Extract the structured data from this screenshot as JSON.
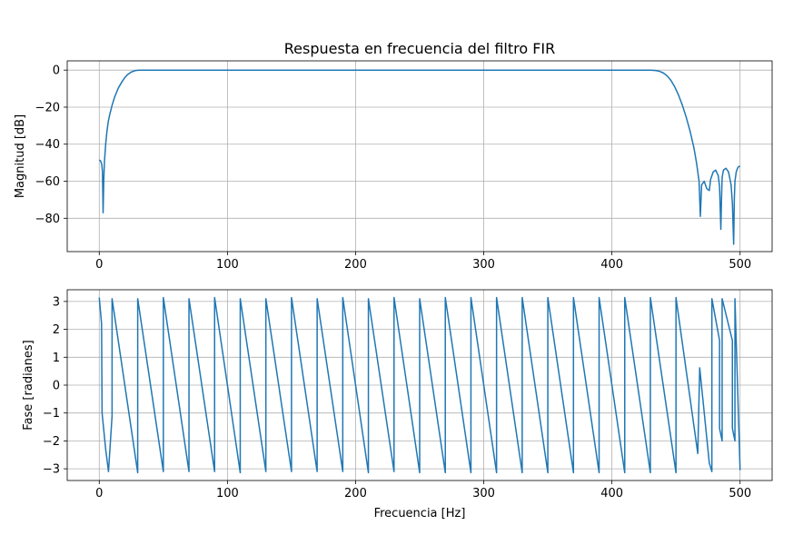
{
  "chart_data": [
    {
      "type": "line",
      "title": "Respuesta en frecuencia del filtro FIR",
      "xlabel": "",
      "ylabel": "Magnitud [dB]",
      "xlim": [
        -25,
        525
      ],
      "ylim": [
        -98,
        5
      ],
      "grid": true,
      "xticks": [
        0,
        100,
        200,
        300,
        400,
        500
      ],
      "xtick_labels": [
        "0",
        "100",
        "200",
        "300",
        "400",
        "500"
      ],
      "yticks": [
        0,
        -20,
        -40,
        -60,
        -80
      ],
      "ytick_labels": [
        "0",
        "−20",
        "−40",
        "−60",
        "−80"
      ],
      "color": "#1f77b4",
      "series": [
        {
          "x": [
            0,
            1,
            2,
            2.5,
            3,
            3.5,
            4,
            5,
            6,
            7,
            8,
            10,
            12,
            15,
            18,
            20,
            22,
            25,
            28,
            30,
            33,
            36,
            40,
            100,
            200,
            300,
            400,
            430,
            434,
            437,
            440,
            443,
            446,
            449,
            452,
            455,
            458,
            461,
            464,
            466,
            468,
            469,
            470,
            472,
            474,
            476,
            477,
            479,
            481,
            483,
            484,
            485,
            485.5,
            486,
            487,
            489,
            491,
            493,
            494,
            495,
            495.5,
            496,
            497,
            498,
            499,
            500
          ],
          "y": [
            -48.5,
            -49,
            -51,
            -55,
            -77,
            -60,
            -50,
            -40,
            -33,
            -28,
            -24.5,
            -19,
            -14.5,
            -9.5,
            -6,
            -4,
            -2.5,
            -1,
            -0.3,
            -0.1,
            0,
            0,
            0,
            0,
            0,
            0,
            0,
            0,
            -0.2,
            -0.6,
            -1.5,
            -3,
            -5.5,
            -9,
            -13.5,
            -19,
            -25.5,
            -33,
            -42,
            -50,
            -60,
            -79,
            -62,
            -60,
            -64,
            -65,
            -59,
            -55,
            -54,
            -57,
            -63,
            -86,
            -70,
            -58,
            -54,
            -53,
            -55,
            -62,
            -72,
            -94,
            -70,
            -60,
            -55,
            -53,
            -52,
            -52
          ]
        }
      ]
    },
    {
      "type": "line",
      "title": "",
      "xlabel": "Frecuencia [Hz]",
      "ylabel": "Fase [radianes]",
      "xlim": [
        -25,
        525
      ],
      "ylim": [
        -3.42,
        3.42
      ],
      "grid": true,
      "xticks": [
        0,
        100,
        200,
        300,
        400,
        500
      ],
      "xtick_labels": [
        "0",
        "100",
        "200",
        "300",
        "400",
        "500"
      ],
      "yticks": [
        3,
        2,
        1,
        0,
        -1,
        -2,
        -3
      ],
      "ytick_labels": [
        "3",
        "2",
        "1",
        "0",
        "−1",
        "−2",
        "−3"
      ],
      "color": "#1f77b4",
      "series": [
        {
          "x": [
            0,
            1.8,
            2.2,
            5,
            5,
            7.2,
            10,
            10,
            30,
            30,
            50,
            50,
            70,
            70,
            90,
            90,
            110,
            110,
            130,
            130,
            150,
            150,
            170,
            170,
            190,
            190,
            210,
            210,
            230,
            230,
            250,
            250,
            270,
            270,
            290,
            290,
            310,
            310,
            330,
            330,
            350,
            350,
            370,
            370,
            390,
            390,
            410,
            410,
            430,
            430,
            450,
            450,
            467,
            468.5,
            468.5,
            476,
            478,
            478,
            484,
            484,
            486,
            486,
            494,
            494,
            496,
            496,
            500
          ],
          "y": [
            3.14,
            2.2,
            -1,
            -2.3,
            -2.3,
            -3.1,
            -1.1,
            3.1,
            -3.14,
            3.1,
            -3.1,
            3.14,
            -3.1,
            3.1,
            -3.1,
            3.14,
            -3.14,
            3.1,
            -3.1,
            3.1,
            -3.1,
            3.14,
            -3.1,
            3.1,
            -3.1,
            3.14,
            -3.14,
            3.1,
            -3.1,
            3.14,
            -3.14,
            3.1,
            -3.14,
            3.14,
            -3.14,
            3.14,
            -3.14,
            3.14,
            -3.14,
            3.14,
            -3.14,
            3.14,
            -3.14,
            3.14,
            -3.14,
            3.14,
            -3.14,
            3.14,
            -3.14,
            3.14,
            -3.14,
            3.14,
            -2.45,
            0.62,
            0.62,
            -2.8,
            -3.1,
            3.1,
            1.6,
            -1.55,
            -2.0,
            3.1,
            1.6,
            -1.55,
            -2.0,
            3.1,
            -3.05
          ]
        }
      ]
    }
  ]
}
